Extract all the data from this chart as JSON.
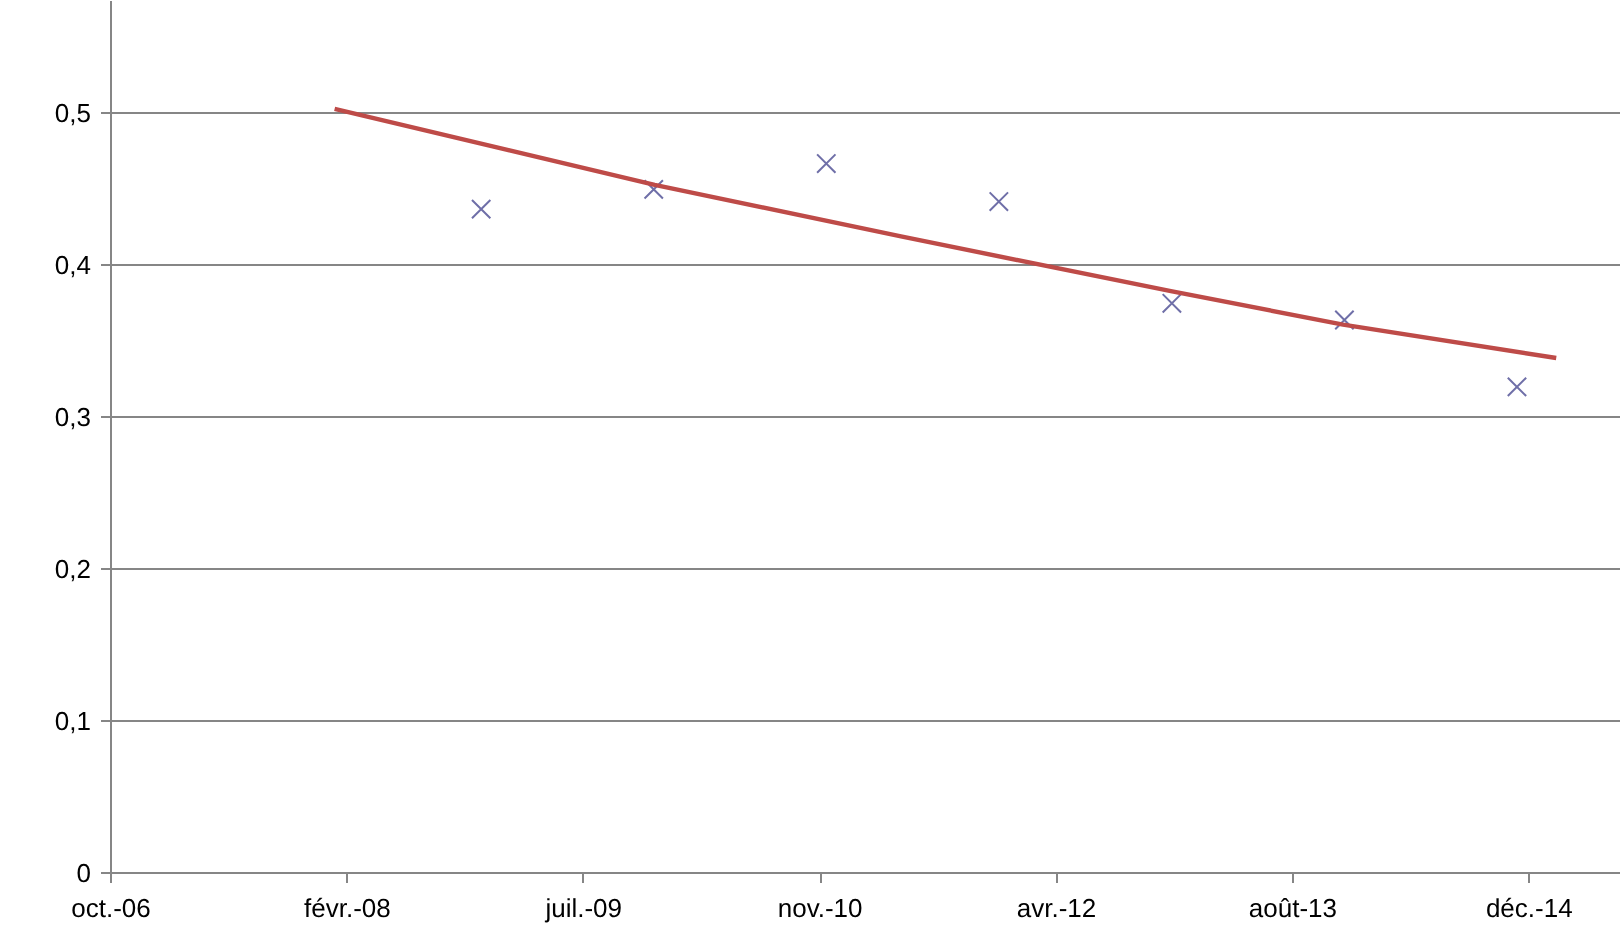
{
  "chart_data": {
    "type": "scatter",
    "xlim": [
      "2006-10-10",
      "2015-07-09"
    ],
    "xticks": [
      {
        "value": "2006-10-10",
        "label": "oct.-06"
      },
      {
        "value": "2008-02-22",
        "label": "févr.-08"
      },
      {
        "value": "2009-07-06",
        "label": "juil.-09"
      },
      {
        "value": "2010-11-18",
        "label": "nov.-10"
      },
      {
        "value": "2012-04-01",
        "label": "avr.-12"
      },
      {
        "value": "2013-08-14",
        "label": "août-13"
      },
      {
        "value": "2014-12-27",
        "label": "déc.-14"
      }
    ],
    "ylim": [
      0,
      0.574
    ],
    "yticks": [
      0,
      {
        "value": 0.1,
        "label": "0,1"
      },
      {
        "value": 0.2,
        "label": "0,2"
      },
      {
        "value": 0.3,
        "label": "0,3"
      },
      {
        "value": 0.4,
        "label": "0,4"
      },
      {
        "value": 0.5,
        "label": "0,5"
      }
    ],
    "grid": "y",
    "series": [
      {
        "marker": "cross",
        "color": "#6f6fa8",
        "x": [
          "2008-12-01",
          "2009-12-01",
          "2010-12-01",
          "2011-12-01",
          "2012-12-01",
          "2013-12-01",
          "2014-12-01"
        ],
        "values": [
          0.437,
          0.45,
          0.467,
          0.442,
          0.375,
          0.364,
          0.32
        ]
      },
      {
        "type": "line",
        "line_style": "solid",
        "color": "#be4b48",
        "x": [
          "2008-01-26",
          "2009-12-03",
          "2011-05-08",
          "2012-11-29",
          "2013-11-28",
          "2015-02-22"
        ],
        "values": [
          0.503,
          0.453,
          0.419,
          0.383,
          0.361,
          0.339
        ]
      }
    ]
  }
}
